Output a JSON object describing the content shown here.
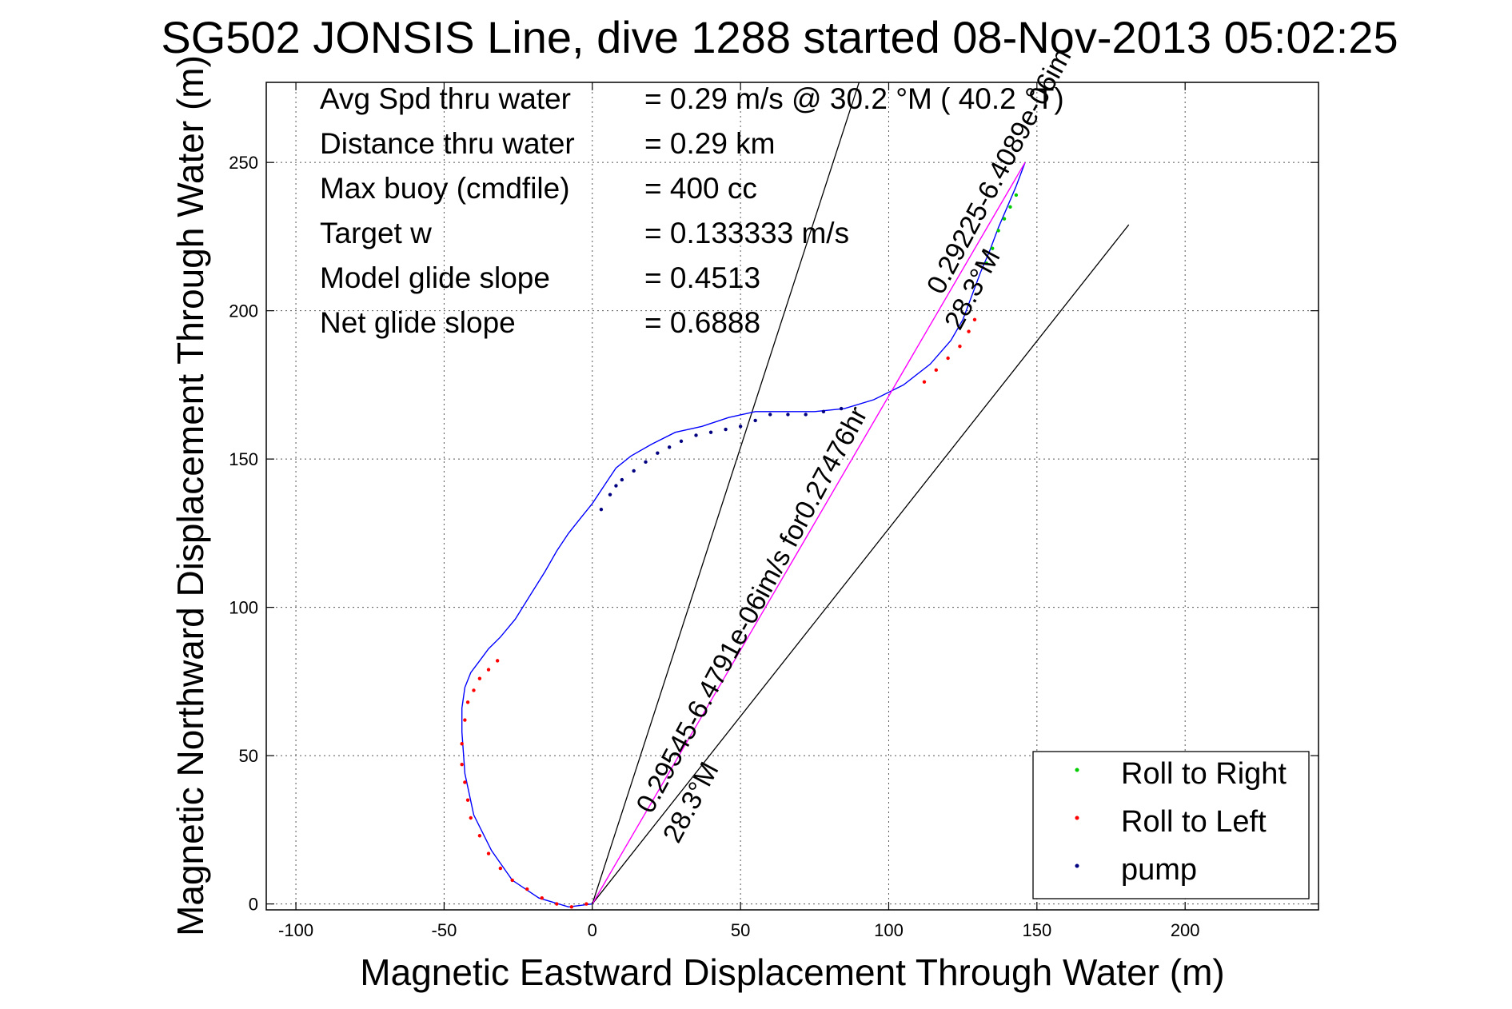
{
  "chart_data": {
    "type": "line",
    "title": "SG502 JONSIS Line, dive 1288 started 08-Nov-2013 05:02:25",
    "xlabel": "Magnetic Eastward Displacement Through Water (m)",
    "ylabel": "Magnetic Northward Displacement Through Water (m)",
    "xlim": [
      -110,
      245
    ],
    "ylim": [
      -2,
      277
    ],
    "xticks": [
      -100,
      -50,
      0,
      50,
      100,
      150,
      200
    ],
    "yticks": [
      0,
      50,
      100,
      150,
      200,
      250
    ],
    "grid": true,
    "legend_position": "bottom-right",
    "legend": [
      {
        "label": "Roll to Right",
        "color": "#00cc00"
      },
      {
        "label": "Roll to Left",
        "color": "#ff0000"
      },
      {
        "label": "pump",
        "color": "#000080"
      }
    ],
    "stats": [
      {
        "label": "Avg Spd thru water",
        "value": "=  0.29 m/s @   30.2 °M ( 40.2 °T)"
      },
      {
        "label": "Distance thru water",
        "value": "=  0.29 km"
      },
      {
        "label": "Max buoy (cmdfile)",
        "value": "= 400 cc"
      },
      {
        "label": "Target w",
        "value": "= 0.133333 m/s"
      },
      {
        "label": "Model glide slope",
        "value": "= 0.4513"
      },
      {
        "label": "Net glide slope",
        "value": "= 0.6888"
      }
    ],
    "annotations": [
      {
        "text": "0.29545-6.4791e-06im/s for0.27476hr",
        "x": 20,
        "y": 30,
        "angle_deg": 61.7
      },
      {
        "text": "28.3°M",
        "x": 29,
        "y": 20,
        "angle_deg": 61.7
      },
      {
        "text": "0.29225-6.4089e-06im",
        "x": 118,
        "y": 205,
        "angle_deg": 61.7
      },
      {
        "text": "28.3°M",
        "x": 124,
        "y": 193,
        "angle_deg": 61.7
      }
    ],
    "reference_lines": [
      {
        "name": "left bound",
        "x": [
          0,
          90
        ],
        "y": [
          0,
          277
        ]
      },
      {
        "name": "right bound",
        "x": [
          0,
          181
        ],
        "y": [
          0,
          229
        ]
      }
    ],
    "series": [
      {
        "role": "track",
        "color": "#0000ff",
        "x": [
          0,
          -8,
          -18,
          -27,
          -34,
          -40,
          -43,
          -44,
          -44,
          -43,
          -41,
          -38,
          -35,
          -31,
          -26,
          -21,
          -16,
          -12,
          -8,
          -4,
          0,
          4,
          8,
          13,
          20,
          28,
          37,
          46,
          55,
          65,
          75,
          85,
          95,
          105,
          114,
          121,
          125,
          128,
          131,
          134,
          137,
          140,
          143,
          146
        ],
        "y": [
          0,
          -1,
          2,
          8,
          18,
          30,
          44,
          58,
          66,
          73,
          78,
          82,
          86,
          90,
          96,
          104,
          112,
          119,
          125,
          130,
          135,
          141,
          147,
          151,
          155,
          159,
          161,
          164,
          166,
          166,
          166,
          167,
          170,
          175,
          182,
          190,
          197,
          205,
          213,
          220,
          228,
          235,
          242,
          250
        ]
      },
      {
        "role": "net track",
        "color": "#ff00ff",
        "x": [
          0,
          146
        ],
        "y": [
          0,
          250
        ]
      },
      {
        "role": "Roll to Right",
        "color": "#00cc00",
        "x": [
          133,
          135,
          137,
          139,
          141,
          143
        ],
        "y": [
          216,
          221,
          227,
          231,
          235,
          239
        ]
      },
      {
        "role": "Roll to Left",
        "color": "#ff0000",
        "x": [
          -2,
          -7,
          -12,
          -17,
          -22,
          -27,
          -31,
          -35,
          -38,
          -41,
          -42,
          -43,
          -44,
          -44,
          -43,
          -42,
          -40,
          -38,
          -35,
          -32,
          112,
          116,
          120,
          124,
          127,
          129
        ],
        "y": [
          0,
          -1,
          0,
          2,
          5,
          8,
          12,
          17,
          23,
          29,
          35,
          41,
          47,
          54,
          62,
          68,
          72,
          76,
          79,
          82,
          176,
          180,
          184,
          188,
          193,
          197
        ]
      },
      {
        "role": "pump",
        "color": "#000080",
        "x": [
          3,
          6,
          8,
          10,
          14,
          18,
          22,
          26,
          30,
          35,
          40,
          45,
          50,
          55,
          60,
          66,
          72,
          78,
          84
        ],
        "y": [
          133,
          138,
          141,
          143,
          146,
          149,
          152,
          154,
          156,
          158,
          159,
          160,
          161,
          163,
          165,
          165,
          165,
          166,
          167
        ]
      }
    ]
  }
}
